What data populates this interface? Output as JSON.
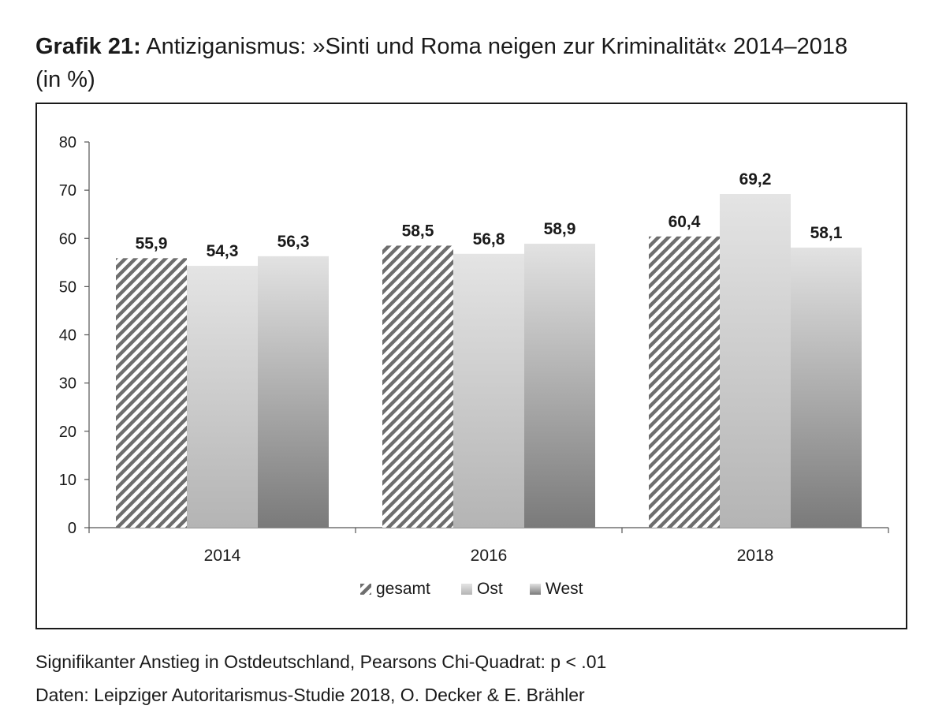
{
  "title": {
    "prefix": "Grafik 21:",
    "text": " Antiziganismus: »Sinti und Roma neigen zur Kriminalität« 2014–2018",
    "line2": "(in %)"
  },
  "notes": [
    "Signifikanter Anstieg in Ostdeutschland, Pearsons Chi-Quadrat: p < .01",
    "Daten: Leipziger Autoritarismus-Studie 2018, O. Decker & E. Brähler"
  ],
  "chart_data": {
    "type": "bar",
    "categories": [
      "2014",
      "2016",
      "2018"
    ],
    "series": [
      {
        "name": "gesamt",
        "values": [
          55.9,
          58.5,
          60.4
        ],
        "labels": [
          "55,9",
          "58,5",
          "60,4"
        ]
      },
      {
        "name": "Ost",
        "values": [
          54.3,
          56.8,
          69.2
        ],
        "labels": [
          "54,3",
          "56,8",
          "69,2"
        ]
      },
      {
        "name": "West",
        "values": [
          56.3,
          58.9,
          58.1
        ],
        "labels": [
          "56,3",
          "58,9",
          "58,1"
        ]
      }
    ],
    "ylim": [
      0,
      80
    ],
    "yticks": [
      0,
      10,
      20,
      30,
      40,
      50,
      60,
      70,
      80
    ],
    "legend_position": "bottom",
    "grid": false
  }
}
